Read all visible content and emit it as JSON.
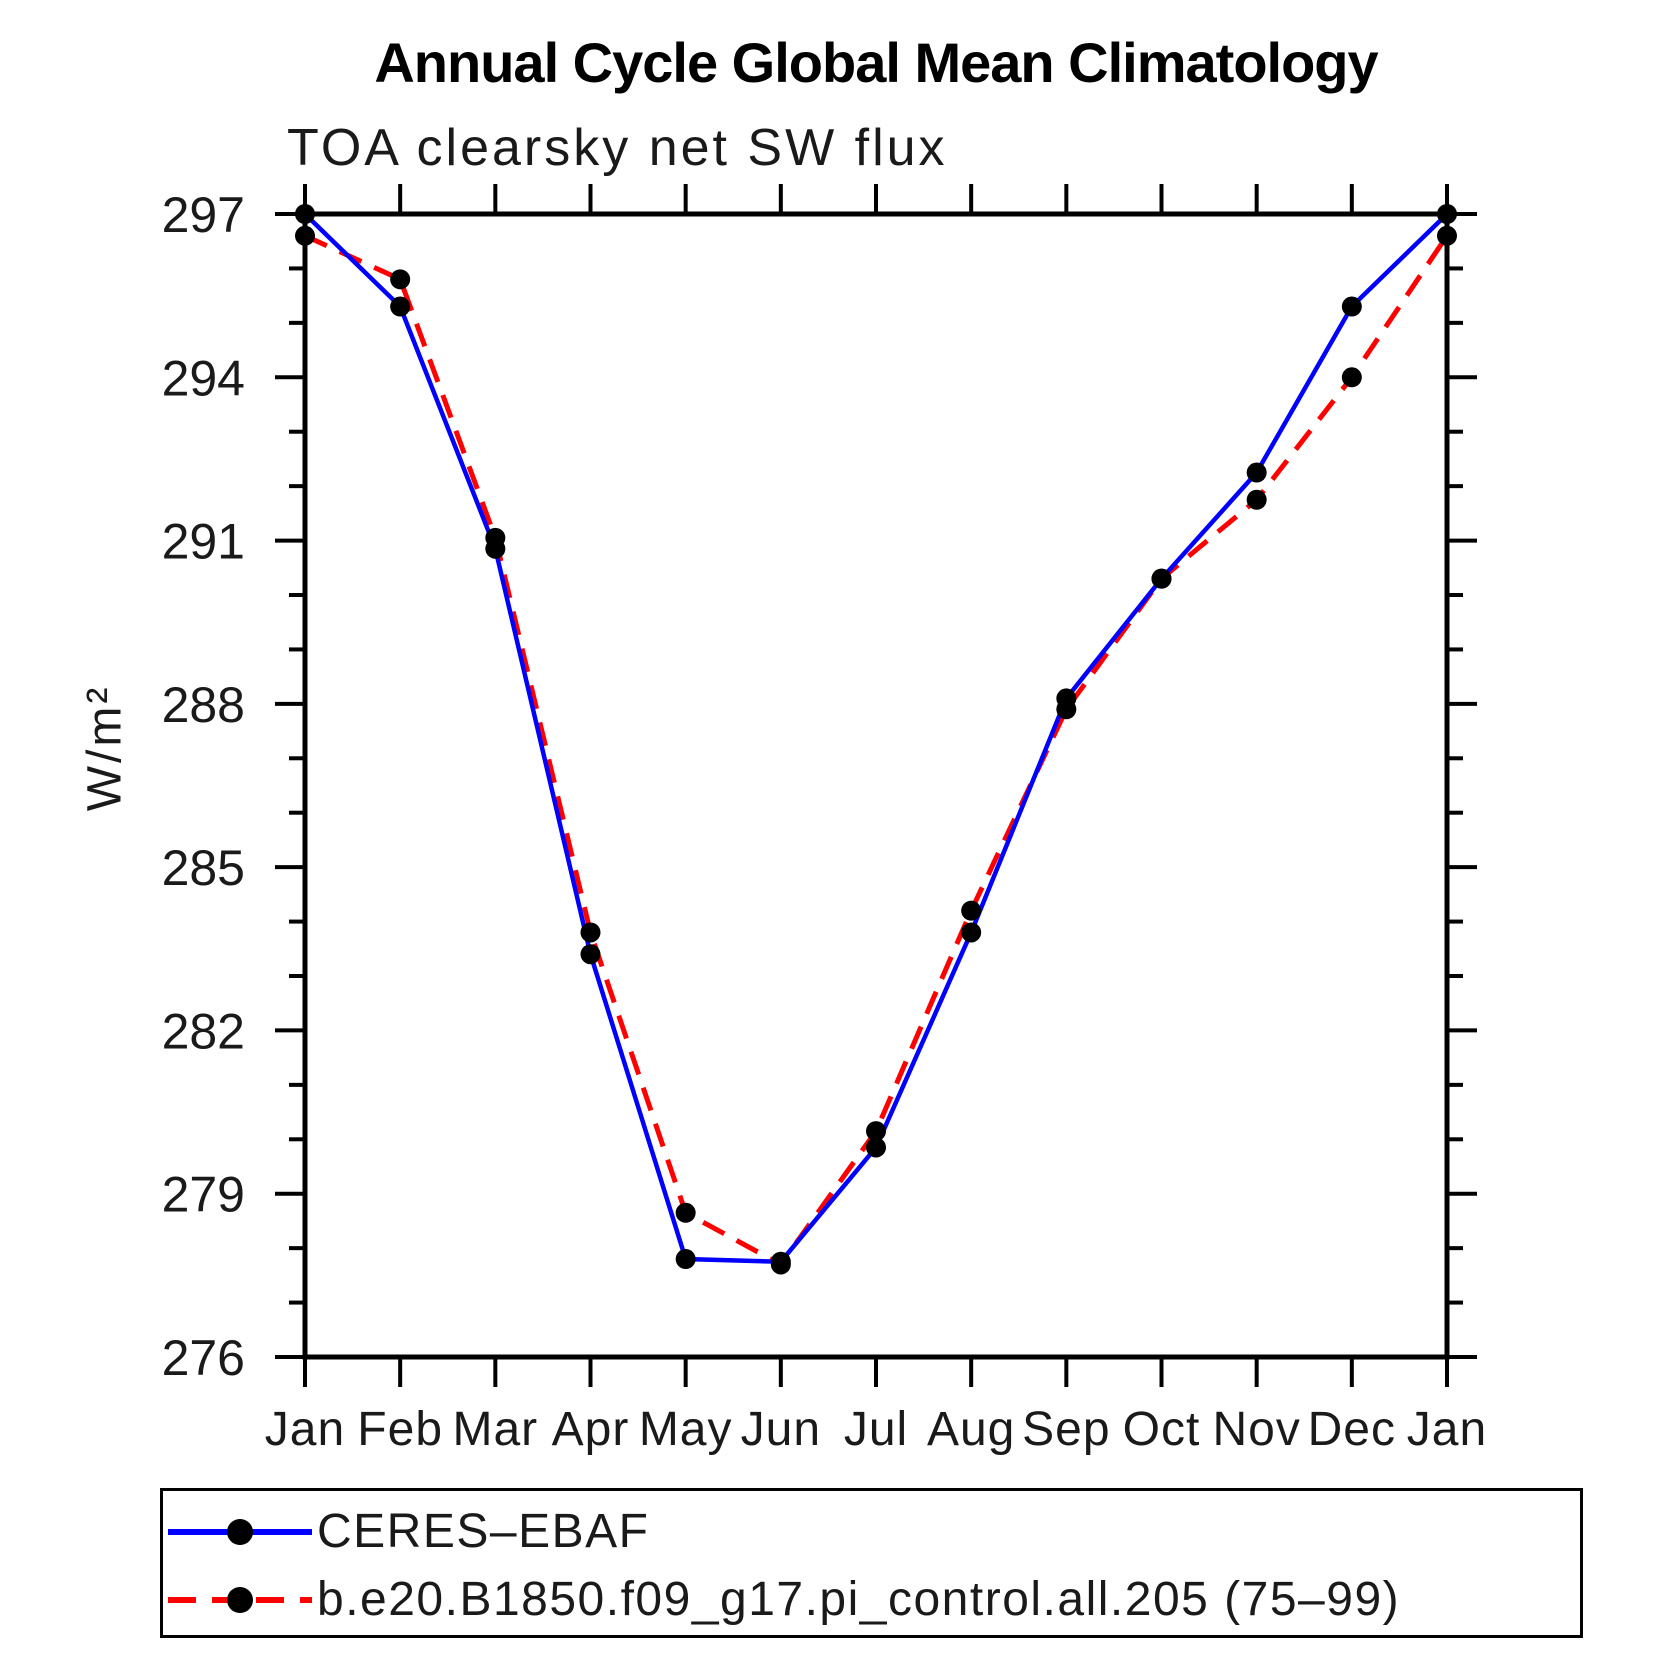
{
  "title": "Annual Cycle Global Mean Climatology",
  "subtitle": "TOA clearsky net SW flux",
  "ylabel": "W/m²",
  "chart_data": {
    "type": "line",
    "x_categories": [
      "Jan",
      "Feb",
      "Mar",
      "Apr",
      "May",
      "Jun",
      "Jul",
      "Aug",
      "Sep",
      "Oct",
      "Nov",
      "Dec",
      "Jan"
    ],
    "xlabel": "",
    "ylabel": "W/m²",
    "ylim": [
      276,
      297
    ],
    "y_major_ticks": [
      276,
      279,
      282,
      285,
      288,
      291,
      294,
      297
    ],
    "y_minor_step": 1,
    "grid": false,
    "legend_position": "bottom-box",
    "axis_color": "#000000",
    "series": [
      {
        "name": "CERES–EBAF",
        "color": "#0000ff",
        "line_style": "solid",
        "marker": "circle",
        "marker_color": "#000000",
        "values": [
          297.0,
          295.3,
          290.85,
          283.4,
          277.8,
          277.75,
          279.85,
          283.8,
          288.1,
          290.3,
          292.25,
          295.3,
          297.0
        ]
      },
      {
        "name": "b.e20.B1850.f09_g17.pi_control.all.205 (75–99)",
        "color": "#ff0000",
        "line_style": "dashed",
        "marker": "circle",
        "marker_color": "#000000",
        "values": [
          296.6,
          295.8,
          291.05,
          283.8,
          278.65,
          277.7,
          280.15,
          284.2,
          287.9,
          290.3,
          291.75,
          294.0,
          296.6
        ]
      }
    ]
  }
}
